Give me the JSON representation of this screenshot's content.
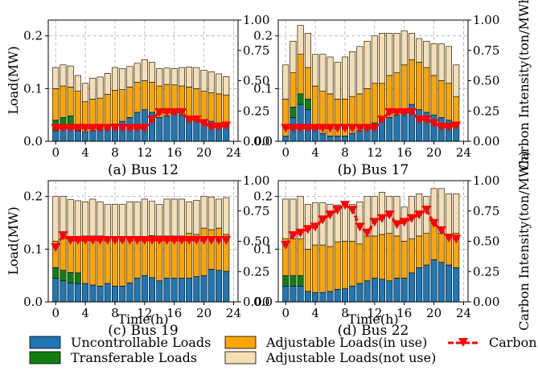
{
  "colors": {
    "uncontrollable": "#1f77b4",
    "transferable": "#107f10",
    "adjustable_in_use": "#ffa500",
    "adjustable_not_use": "#f5deb3",
    "carbon": "#ff0000",
    "grid": "#b0b0b0"
  },
  "legend": {
    "uncontrollable": "Uncontrollable Loads",
    "transferable": "Transferable Loads",
    "adjustable_in_use": "Adjustable Loads(in use)",
    "adjustable_not_use": "Adjustable Loads(not use)",
    "carbon": "Carbon I"
  },
  "axes": {
    "ylabel_left": "Load(MW)",
    "ylabel_right": "Carbon Intensity(ton/MWh)",
    "xlabel": "Time(h)",
    "x_ticks": [
      "0",
      "4",
      "8",
      "12",
      "16",
      "20",
      "24"
    ],
    "y_left_ticks": [
      "0.0",
      "0.1",
      "0.2"
    ],
    "y_right_ticks": [
      "0.00",
      "0.25",
      "0.50",
      "0.75",
      "1.00"
    ]
  },
  "chart_data": [
    {
      "type": "bar",
      "caption": "(a) Bus 12",
      "xlim": [
        -1,
        24.6
      ],
      "ylim_left": [
        0,
        0.23
      ],
      "ylim_right": [
        0,
        1.0
      ],
      "x": [
        0,
        1,
        2,
        3,
        4,
        5,
        6,
        7,
        8,
        9,
        10,
        11,
        12,
        13,
        14,
        15,
        16,
        17,
        18,
        19,
        20,
        21,
        22,
        23
      ],
      "series": [
        {
          "name": "Uncontrollable Loads",
          "values": [
            0.02,
            0.025,
            0.028,
            0.02,
            0.018,
            0.02,
            0.022,
            0.026,
            0.033,
            0.038,
            0.045,
            0.055,
            0.06,
            0.055,
            0.045,
            0.048,
            0.052,
            0.05,
            0.048,
            0.045,
            0.04,
            0.038,
            0.035,
            0.035
          ]
        },
        {
          "name": "Transferable Loads",
          "values": [
            0.02,
            0.02,
            0.02,
            0.01,
            0,
            0,
            0,
            0,
            0,
            0,
            0,
            0,
            0,
            0,
            0,
            0,
            0,
            0,
            0,
            0,
            0,
            0,
            0,
            0
          ]
        },
        {
          "name": "Adjustable Loads(in use)",
          "values": [
            0.06,
            0.06,
            0.055,
            0.065,
            0.057,
            0.06,
            0.06,
            0.063,
            0.064,
            0.06,
            0.058,
            0.057,
            0.055,
            0.057,
            0.06,
            0.06,
            0.055,
            0.055,
            0.055,
            0.055,
            0.055,
            0.054,
            0.055,
            0.053
          ]
        },
        {
          "name": "Adjustable Loads(not use)",
          "values": [
            0.04,
            0.04,
            0.04,
            0.03,
            0.035,
            0.04,
            0.04,
            0.04,
            0.043,
            0.04,
            0.039,
            0.036,
            0.04,
            0.038,
            0.033,
            0.031,
            0.031,
            0.035,
            0.038,
            0.04,
            0.04,
            0.04,
            0.038,
            0.035
          ]
        },
        {
          "name": "Carbon I",
          "axis": "right",
          "values": [
            0.11,
            0.11,
            0.11,
            0.11,
            0.11,
            0.11,
            0.11,
            0.11,
            0.11,
            0.11,
            0.11,
            0.11,
            0.11,
            0.18,
            0.24,
            0.24,
            0.24,
            0.24,
            0.18,
            0.18,
            0.15,
            0.12,
            0.12,
            0.13
          ]
        }
      ]
    },
    {
      "type": "bar",
      "caption": "(b) Bus 17",
      "xlim": [
        -1,
        24.6
      ],
      "ylim_left": [
        0,
        0.23
      ],
      "ylim_right": [
        0,
        1.0
      ],
      "x": [
        0,
        1,
        2,
        3,
        4,
        5,
        6,
        7,
        8,
        9,
        10,
        11,
        12,
        13,
        14,
        15,
        16,
        17,
        18,
        19,
        20,
        21,
        22,
        23
      ],
      "series": [
        {
          "name": "Uncontrollable Loads",
          "values": [
            0.01,
            0.045,
            0.07,
            0.06,
            0.03,
            0.015,
            0.01,
            0.01,
            0.01,
            0.015,
            0.02,
            0.03,
            0.035,
            0.04,
            0.045,
            0.05,
            0.06,
            0.07,
            0.06,
            0.055,
            0.05,
            0.045,
            0.04,
            0.035
          ]
        },
        {
          "name": "Transferable Loads",
          "values": [
            0,
            0.02,
            0.02,
            0.02,
            0,
            0,
            0,
            0,
            0,
            0,
            0,
            0,
            0,
            0,
            0,
            0,
            0,
            0,
            0,
            0,
            0,
            0,
            0,
            0
          ]
        },
        {
          "name": "Adjustable Loads(in use)",
          "values": [
            0.07,
            0.065,
            0.075,
            0.06,
            0.075,
            0.08,
            0.08,
            0.07,
            0.07,
            0.07,
            0.07,
            0.07,
            0.075,
            0.07,
            0.08,
            0.08,
            0.085,
            0.085,
            0.09,
            0.085,
            0.075,
            0.07,
            0.07,
            0.05
          ]
        },
        {
          "name": "Adjustable Loads(not use)",
          "values": [
            0.065,
            0.06,
            0.055,
            0.065,
            0.06,
            0.07,
            0.07,
            0.07,
            0.08,
            0.085,
            0.09,
            0.09,
            0.09,
            0.095,
            0.08,
            0.075,
            0.065,
            0.05,
            0.045,
            0.05,
            0.06,
            0.07,
            0.07,
            0.06
          ]
        },
        {
          "name": "Carbon I",
          "axis": "right",
          "values": [
            0.11,
            0.11,
            0.11,
            0.11,
            0.11,
            0.11,
            0.11,
            0.11,
            0.11,
            0.11,
            0.11,
            0.11,
            0.11,
            0.18,
            0.24,
            0.24,
            0.24,
            0.24,
            0.18,
            0.18,
            0.15,
            0.12,
            0.12,
            0.13
          ]
        }
      ]
    },
    {
      "type": "bar",
      "caption": "(c) Bus 19",
      "xlim": [
        -1,
        24.6
      ],
      "ylim_left": [
        0,
        0.23
      ],
      "ylim_right": [
        0,
        1.0
      ],
      "x": [
        0,
        1,
        2,
        3,
        4,
        5,
        6,
        7,
        8,
        9,
        10,
        11,
        12,
        13,
        14,
        15,
        16,
        17,
        18,
        19,
        20,
        21,
        22,
        23
      ],
      "series": [
        {
          "name": "Uncontrollable Loads",
          "values": [
            0.045,
            0.04,
            0.036,
            0.035,
            0.035,
            0.032,
            0.03,
            0.035,
            0.03,
            0.03,
            0.036,
            0.045,
            0.05,
            0.046,
            0.04,
            0.045,
            0.045,
            0.045,
            0.045,
            0.048,
            0.05,
            0.062,
            0.06,
            0.058
          ]
        },
        {
          "name": "Transferable Loads",
          "values": [
            0.02,
            0.02,
            0.02,
            0.02,
            0,
            0,
            0,
            0,
            0,
            0,
            0,
            0,
            0,
            0,
            0,
            0,
            0,
            0,
            0,
            0,
            0,
            0,
            0,
            0
          ]
        },
        {
          "name": "Adjustable Loads(in use)",
          "values": [
            0.05,
            0.06,
            0.063,
            0.062,
            0.09,
            0.093,
            0.095,
            0.085,
            0.09,
            0.09,
            0.085,
            0.075,
            0.07,
            0.08,
            0.085,
            0.08,
            0.08,
            0.08,
            0.085,
            0.08,
            0.09,
            0.075,
            0.08,
            0.07
          ]
        },
        {
          "name": "Adjustable Loads(not use)",
          "values": [
            0.085,
            0.08,
            0.075,
            0.075,
            0.065,
            0.07,
            0.065,
            0.065,
            0.065,
            0.065,
            0.069,
            0.07,
            0.075,
            0.065,
            0.06,
            0.07,
            0.07,
            0.07,
            0.06,
            0.065,
            0.06,
            0.062,
            0.055,
            0.07
          ]
        },
        {
          "name": "Carbon I",
          "axis": "right",
          "values": [
            0.45,
            0.55,
            0.51,
            0.51,
            0.51,
            0.51,
            0.51,
            0.51,
            0.51,
            0.51,
            0.51,
            0.51,
            0.51,
            0.51,
            0.51,
            0.51,
            0.51,
            0.51,
            0.51,
            0.51,
            0.51,
            0.51,
            0.51,
            0.51
          ]
        }
      ]
    },
    {
      "type": "bar",
      "caption": "(d) Bus 22",
      "xlim": [
        -1,
        24.6
      ],
      "ylim_left": [
        0,
        0.23
      ],
      "ylim_right": [
        0,
        1.0
      ],
      "x": [
        0,
        1,
        2,
        3,
        4,
        5,
        6,
        7,
        8,
        9,
        10,
        11,
        12,
        13,
        14,
        15,
        16,
        17,
        18,
        19,
        20,
        21,
        22,
        23
      ],
      "series": [
        {
          "name": "Uncontrollable Loads",
          "values": [
            0.03,
            0.03,
            0.03,
            0.02,
            0.018,
            0.018,
            0.02,
            0.024,
            0.025,
            0.03,
            0.035,
            0.04,
            0.045,
            0.043,
            0.04,
            0.045,
            0.045,
            0.055,
            0.065,
            0.07,
            0.08,
            0.075,
            0.07,
            0.065
          ]
        },
        {
          "name": "Transferable Loads",
          "values": [
            0.02,
            0.02,
            0.02,
            0,
            0,
            0,
            0,
            0,
            0,
            0,
            0,
            0,
            0,
            0,
            0,
            0,
            0,
            0,
            0,
            0,
            0,
            0,
            0,
            0
          ]
        },
        {
          "name": "Adjustable Loads(in use)",
          "values": [
            0.07,
            0.07,
            0.07,
            0.08,
            0.09,
            0.09,
            0.085,
            0.09,
            0.09,
            0.085,
            0.075,
            0.085,
            0.08,
            0.085,
            0.09,
            0.08,
            0.07,
            0.065,
            0.06,
            0.06,
            0.07,
            0.055,
            0.055,
            0.065
          ]
        },
        {
          "name": "Adjustable Loads(not use)",
          "values": [
            0.075,
            0.075,
            0.08,
            0.085,
            0.08,
            0.08,
            0.08,
            0.07,
            0.07,
            0.07,
            0.08,
            0.075,
            0.075,
            0.08,
            0.07,
            0.075,
            0.065,
            0.08,
            0.08,
            0.07,
            0.065,
            0.085,
            0.08,
            0.075
          ]
        },
        {
          "name": "Carbon I",
          "axis": "right",
          "values": [
            0.47,
            0.55,
            0.57,
            0.6,
            0.62,
            0.68,
            0.72,
            0.76,
            0.8,
            0.76,
            0.62,
            0.57,
            0.66,
            0.69,
            0.72,
            0.64,
            0.66,
            0.69,
            0.72,
            0.76,
            0.65,
            0.59,
            0.53,
            0.52
          ]
        }
      ]
    }
  ]
}
